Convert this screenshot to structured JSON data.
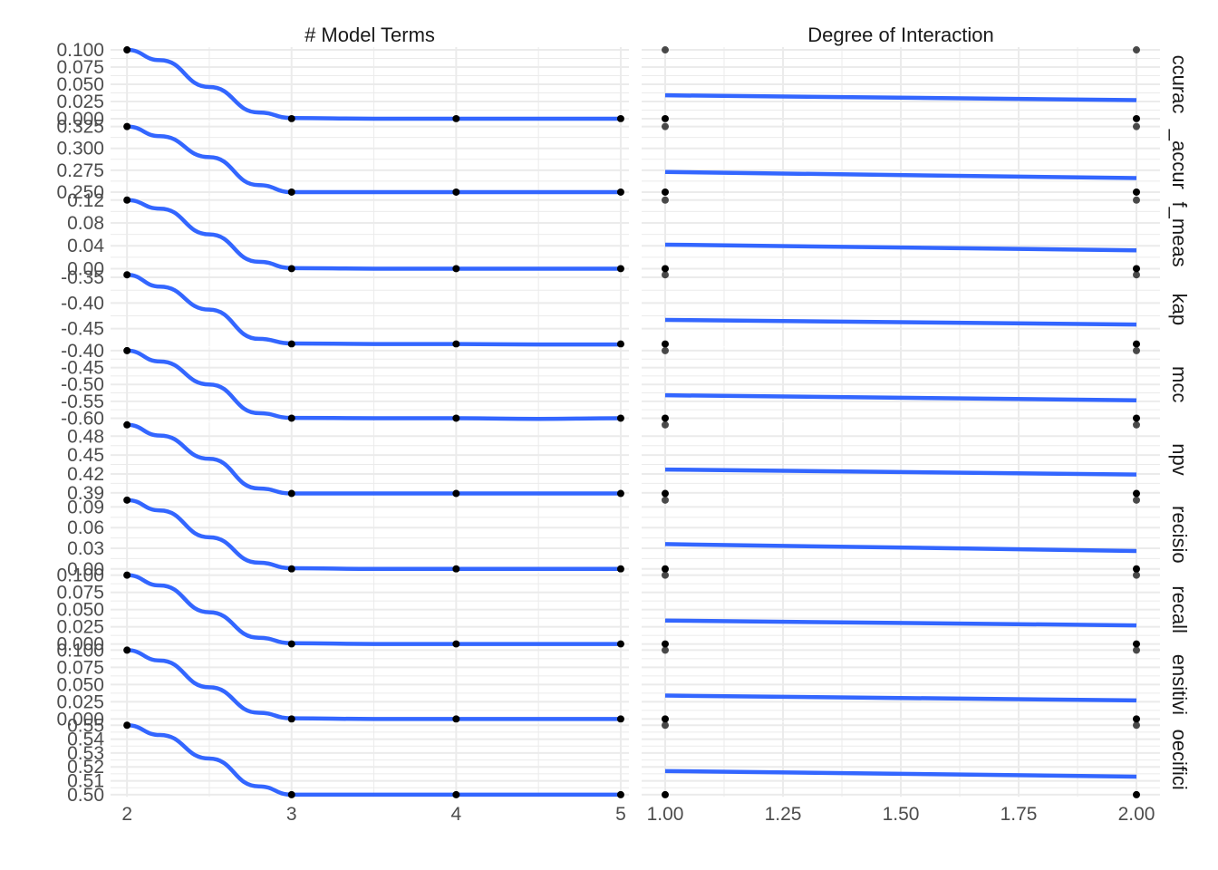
{
  "chart_data": {
    "type": "line",
    "facet_columns": [
      {
        "title": "# Model Terms",
        "x_ticks": [
          2,
          3,
          4,
          5
        ],
        "x_tick_labels": [
          "2",
          "3",
          "4",
          "5"
        ],
        "xlim": [
          1.9,
          5.05
        ]
      },
      {
        "title": "Degree of Interaction",
        "x_ticks": [
          1.0,
          1.25,
          1.5,
          1.75,
          2.0
        ],
        "x_tick_labels": [
          "1.00",
          "1.25",
          "1.50",
          "1.75",
          "2.00"
        ],
        "xlim": [
          0.95,
          2.05
        ]
      }
    ],
    "grid": true,
    "legend": "none",
    "colors": {
      "smooth": "#3366ff",
      "point": "#000000",
      "grid": "#ebebeb",
      "strip_text": "#1a1a1a",
      "tick_text": "#4d4d4d"
    },
    "metrics": [
      {
        "label": "ccurac",
        "ylim": [
          -0.004,
          0.104
        ],
        "y_ticks": [
          0,
          0.025,
          0.05,
          0.075,
          0.1
        ],
        "y_tick_labels": [
          "0.000",
          "0.025",
          "0.050",
          "0.075",
          "0.100"
        ],
        "terms": {
          "x": [
            2,
            3,
            4,
            5
          ],
          "points": [
            0.1,
            0.0,
            0.0,
            0.0
          ],
          "smooth_x": [
            2,
            2.2,
            2.5,
            2.8,
            3,
            3.5,
            4,
            4.5,
            5
          ],
          "smooth_y": [
            0.1,
            0.085,
            0.046,
            0.009,
            0.001,
            0.0,
            0.0,
            0.0,
            0.0
          ]
        },
        "interaction": {
          "x": [
            1,
            1,
            2,
            2
          ],
          "points": [
            0.1,
            0.0,
            0.1,
            0.0
          ],
          "line": [
            0.034,
            0.027
          ]
        }
      },
      {
        "label": "_accur",
        "ylim": [
          0.245,
          0.33
        ],
        "y_ticks": [
          0.25,
          0.275,
          0.3,
          0.325
        ],
        "y_tick_labels": [
          "0.250",
          "0.275",
          "0.300",
          "0.325"
        ],
        "terms": {
          "x": [
            2,
            3,
            4,
            5
          ],
          "points": [
            0.325,
            0.25,
            0.25,
            0.25
          ],
          "smooth_x": [
            2,
            2.2,
            2.5,
            2.8,
            3,
            3.5,
            4,
            4.5,
            5
          ],
          "smooth_y": [
            0.325,
            0.314,
            0.29,
            0.258,
            0.25,
            0.25,
            0.25,
            0.25,
            0.25
          ]
        },
        "interaction": {
          "x": [
            1,
            1,
            2,
            2
          ],
          "points": [
            0.325,
            0.25,
            0.325,
            0.25
          ],
          "line": [
            0.273,
            0.266
          ]
        }
      },
      {
        "label": "f_meas",
        "ylim": [
          -0.005,
          0.125
        ],
        "y_ticks": [
          0,
          0.04,
          0.08,
          0.12
        ],
        "y_tick_labels": [
          "0.00",
          "0.04",
          "0.08",
          "0.12"
        ],
        "terms": {
          "x": [
            2,
            3,
            4,
            5
          ],
          "points": [
            0.12,
            0.0,
            0.0,
            0.0
          ],
          "smooth_x": [
            2,
            2.2,
            2.5,
            2.8,
            3,
            3.5,
            4,
            4.5,
            5
          ],
          "smooth_y": [
            0.12,
            0.105,
            0.06,
            0.012,
            0.001,
            0.0,
            0.0,
            0.0,
            0.0
          ]
        },
        "interaction": {
          "x": [
            1,
            1,
            2,
            2
          ],
          "points": [
            0.12,
            0.0,
            0.12,
            0.0
          ],
          "line": [
            0.042,
            0.032
          ]
        }
      },
      {
        "label": "kap",
        "ylim": [
          -0.485,
          -0.34
        ],
        "y_ticks": [
          -0.45,
          -0.4,
          -0.35
        ],
        "y_tick_labels": [
          "-0.45",
          "-0.40",
          "-0.35"
        ],
        "terms": {
          "x": [
            2,
            3,
            4,
            5
          ],
          "points": [
            -0.345,
            -0.48,
            -0.48,
            -0.48
          ],
          "smooth_x": [
            2,
            2.2,
            2.5,
            2.8,
            3,
            3.5,
            4,
            4.5,
            5
          ],
          "smooth_y": [
            -0.345,
            -0.368,
            -0.413,
            -0.47,
            -0.479,
            -0.48,
            -0.48,
            -0.481,
            -0.481
          ]
        },
        "interaction": {
          "x": [
            1,
            1,
            2,
            2
          ],
          "points": [
            -0.345,
            -0.48,
            -0.345,
            -0.48
          ],
          "line": [
            -0.433,
            -0.442
          ]
        }
      },
      {
        "label": "mcc",
        "ylim": [
          -0.61,
          -0.39
        ],
        "y_ticks": [
          -0.6,
          -0.55,
          -0.5,
          -0.45,
          -0.4
        ],
        "y_tick_labels": [
          "-0.60",
          "-0.55",
          "-0.50",
          "-0.45",
          "-0.40"
        ],
        "terms": {
          "x": [
            2,
            3,
            4,
            5
          ],
          "points": [
            -0.4,
            -0.6,
            -0.6,
            -0.6
          ],
          "smooth_x": [
            2,
            2.2,
            2.5,
            2.8,
            3,
            3.5,
            4,
            4.5,
            5
          ],
          "smooth_y": [
            -0.4,
            -0.432,
            -0.5,
            -0.585,
            -0.599,
            -0.6,
            -0.6,
            -0.602,
            -0.6
          ]
        },
        "interaction": {
          "x": [
            1,
            1,
            2,
            2
          ],
          "points": [
            -0.4,
            -0.6,
            -0.4,
            -0.6
          ],
          "line": [
            -0.532,
            -0.547
          ]
        }
      },
      {
        "label": "npv",
        "ylim": [
          0.384,
          0.502
        ],
        "y_ticks": [
          0.39,
          0.42,
          0.45,
          0.48
        ],
        "y_tick_labels": [
          "0.39",
          "0.42",
          "0.45",
          "0.48"
        ],
        "terms": {
          "x": [
            2,
            3,
            4,
            5
          ],
          "points": [
            0.498,
            0.389,
            0.389,
            0.389
          ],
          "smooth_x": [
            2,
            2.2,
            2.5,
            2.8,
            3,
            3.5,
            4,
            4.5,
            5
          ],
          "smooth_y": [
            0.498,
            0.481,
            0.444,
            0.397,
            0.389,
            0.389,
            0.389,
            0.389,
            0.389
          ]
        },
        "interaction": {
          "x": [
            1,
            1,
            2,
            2
          ],
          "points": [
            0.498,
            0.389,
            0.498,
            0.389
          ],
          "line": [
            0.427,
            0.419
          ]
        }
      },
      {
        "label": "recisio",
        "ylim": [
          -0.004,
          0.104
        ],
        "y_ticks": [
          0,
          0.03,
          0.06,
          0.09
        ],
        "y_tick_labels": [
          "0.00",
          "0.03",
          "0.06",
          "0.09"
        ],
        "terms": {
          "x": [
            2,
            3,
            4,
            5
          ],
          "points": [
            0.1,
            0.0,
            0.0,
            0.0
          ],
          "smooth_x": [
            2,
            2.2,
            2.5,
            2.8,
            3,
            3.5,
            4,
            4.5,
            5
          ],
          "smooth_y": [
            0.1,
            0.085,
            0.046,
            0.009,
            0.001,
            0.0,
            0.0,
            0.0,
            0.0
          ]
        },
        "interaction": {
          "x": [
            1,
            1,
            2,
            2
          ],
          "points": [
            0.1,
            0.0,
            0.1,
            0.0
          ],
          "line": [
            0.036,
            0.026
          ]
        }
      },
      {
        "label": "recall",
        "ylim": [
          -0.004,
          0.104
        ],
        "y_ticks": [
          0,
          0.025,
          0.05,
          0.075,
          0.1
        ],
        "y_tick_labels": [
          "0.000",
          "0.025",
          "0.050",
          "0.075",
          "0.100"
        ],
        "terms": {
          "x": [
            2,
            3,
            4,
            5
          ],
          "points": [
            0.1,
            0.0,
            0.0,
            0.0
          ],
          "smooth_x": [
            2,
            2.2,
            2.5,
            2.8,
            3,
            3.5,
            4,
            4.5,
            5
          ],
          "smooth_y": [
            0.1,
            0.085,
            0.046,
            0.009,
            0.001,
            0.0,
            0.0,
            0.0,
            0.0
          ]
        },
        "interaction": {
          "x": [
            1,
            1,
            2,
            2
          ],
          "points": [
            0.1,
            0.0,
            0.1,
            0.0
          ],
          "line": [
            0.034,
            0.027
          ]
        }
      },
      {
        "label": "ensitivi",
        "ylim": [
          -0.004,
          0.104
        ],
        "y_ticks": [
          0,
          0.025,
          0.05,
          0.075,
          0.1
        ],
        "y_tick_labels": [
          "0.000",
          "0.025",
          "0.050",
          "0.075",
          "0.100"
        ],
        "terms": {
          "x": [
            2,
            3,
            4,
            5
          ],
          "points": [
            0.1,
            0.0,
            0.0,
            0.0
          ],
          "smooth_x": [
            2,
            2.2,
            2.5,
            2.8,
            3,
            3.5,
            4,
            4.5,
            5
          ],
          "smooth_y": [
            0.1,
            0.085,
            0.046,
            0.009,
            0.001,
            0.0,
            0.0,
            0.0,
            0.0
          ]
        },
        "interaction": {
          "x": [
            1,
            1,
            2,
            2
          ],
          "points": [
            0.1,
            0.0,
            0.1,
            0.0
          ],
          "line": [
            0.034,
            0.027
          ]
        }
      },
      {
        "label": "oecifici",
        "ylim": [
          0.4985,
          0.552
        ],
        "y_ticks": [
          0.5,
          0.51,
          0.52,
          0.53,
          0.54,
          0.55
        ],
        "y_tick_labels": [
          "0.50",
          "0.51",
          "0.52",
          "0.53",
          "0.54",
          "0.55"
        ],
        "terms": {
          "x": [
            2,
            3,
            4,
            5
          ],
          "points": [
            0.55,
            0.5,
            0.5,
            0.5
          ],
          "smooth_x": [
            2,
            2.2,
            2.5,
            2.8,
            3,
            3.5,
            4,
            4.5,
            5
          ],
          "smooth_y": [
            0.55,
            0.543,
            0.526,
            0.506,
            0.5,
            0.5,
            0.5,
            0.5,
            0.5
          ]
        },
        "interaction": {
          "x": [
            1,
            1,
            2,
            2
          ],
          "points": [
            0.55,
            0.5,
            0.55,
            0.5
          ],
          "line": [
            0.517,
            0.513
          ]
        }
      }
    ]
  }
}
